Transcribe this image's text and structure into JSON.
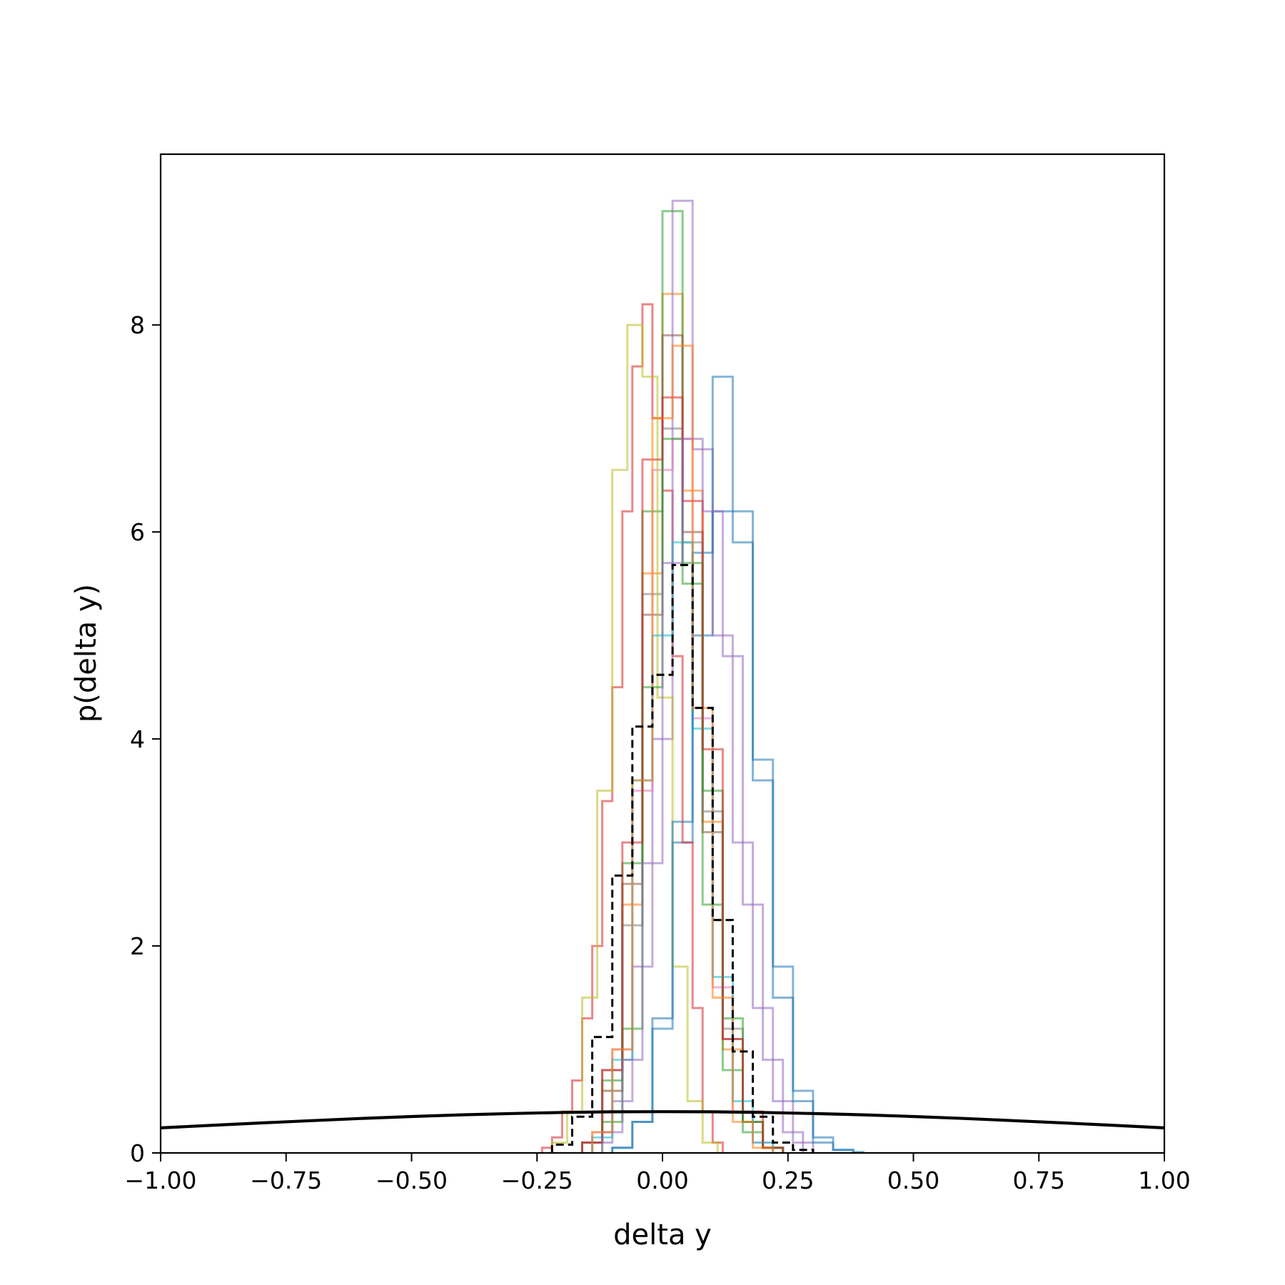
{
  "chart_data": {
    "type": "histogram",
    "xlabel": "delta y",
    "ylabel": "p(delta y)",
    "xlim": [
      -1.0,
      1.0
    ],
    "ylim": [
      0,
      9.65
    ],
    "xticks": [
      -1.0,
      -0.75,
      -0.5,
      -0.25,
      0.0,
      0.25,
      0.5,
      0.75,
      1.0
    ],
    "xtick_labels": [
      "−1.00",
      "−0.75",
      "−0.50",
      "−0.25",
      "0.00",
      "0.25",
      "0.50",
      "0.75",
      "1.00"
    ],
    "yticks": [
      0,
      2,
      4,
      6,
      8
    ],
    "ytick_labels": [
      "0",
      "2",
      "4",
      "6",
      "8"
    ],
    "grid": false,
    "legend": false,
    "style": {
      "histogram_opacity": 0.55,
      "reference_color": "#000000",
      "overall_color": "#000000"
    },
    "series": [
      {
        "color": "#1f77b4",
        "bin_edges": [
          -0.1,
          -0.06,
          -0.02,
          0.02,
          0.06,
          0.1,
          0.14,
          0.18,
          0.22,
          0.26,
          0.3,
          0.34,
          0.38
        ],
        "values": [
          0.05,
          0.3,
          1.2,
          3.0,
          5.0,
          6.2,
          5.9,
          3.8,
          1.8,
          0.6,
          0.15,
          0.03
        ]
      },
      {
        "color": "#ff7f0e",
        "bin_edges": [
          -0.16,
          -0.12,
          -0.08,
          -0.04,
          0.0,
          0.04,
          0.08,
          0.12,
          0.16,
          0.2,
          0.24
        ],
        "values": [
          0.1,
          0.6,
          2.4,
          5.6,
          8.3,
          6.4,
          3.2,
          1.0,
          0.3,
          0.05
        ]
      },
      {
        "color": "#2ca02c",
        "bin_edges": [
          -0.16,
          -0.12,
          -0.08,
          -0.04,
          0.0,
          0.04,
          0.08,
          0.12,
          0.16,
          0.2,
          0.24
        ],
        "values": [
          0.1,
          0.7,
          2.8,
          6.2,
          9.1,
          5.5,
          2.4,
          0.8,
          0.2,
          0.05
        ]
      },
      {
        "color": "#d62728",
        "bin_edges": [
          -0.24,
          -0.22,
          -0.2,
          -0.18,
          -0.16,
          -0.14,
          -0.12,
          -0.1,
          -0.08,
          -0.06,
          -0.04,
          -0.02,
          0.0,
          0.02,
          0.04,
          0.06,
          0.08,
          0.1,
          0.12
        ],
        "values": [
          0.05,
          0.15,
          0.4,
          0.7,
          1.3,
          2.0,
          3.4,
          4.5,
          6.2,
          7.6,
          8.2,
          7.1,
          6.4,
          4.8,
          3.0,
          1.4,
          0.4,
          0.1
        ]
      },
      {
        "color": "#9467bd",
        "bin_edges": [
          -0.14,
          -0.1,
          -0.06,
          -0.02,
          0.02,
          0.06,
          0.1,
          0.14,
          0.18,
          0.22,
          0.26,
          0.3
        ],
        "values": [
          0.1,
          0.5,
          1.8,
          4.0,
          9.2,
          6.8,
          5.0,
          3.0,
          1.4,
          0.5,
          0.1
        ]
      },
      {
        "color": "#8c564b",
        "bin_edges": [
          -0.16,
          -0.12,
          -0.08,
          -0.04,
          0.0,
          0.04,
          0.08,
          0.12,
          0.16,
          0.2,
          0.24
        ],
        "values": [
          0.1,
          0.8,
          2.6,
          5.2,
          7.9,
          6.0,
          3.1,
          1.1,
          0.3,
          0.05
        ]
      },
      {
        "color": "#e377c2",
        "bin_edges": [
          -0.14,
          -0.1,
          -0.06,
          -0.02,
          0.02,
          0.06,
          0.1,
          0.14,
          0.18,
          0.22
        ],
        "values": [
          0.2,
          1.0,
          3.5,
          6.6,
          6.9,
          4.2,
          1.6,
          0.4,
          0.1
        ]
      },
      {
        "color": "#7f7f7f",
        "bin_edges": [
          -0.16,
          -0.12,
          -0.08,
          -0.04,
          0.0,
          0.04,
          0.08,
          0.12,
          0.16,
          0.2,
          0.24
        ],
        "values": [
          0.1,
          0.6,
          2.2,
          5.4,
          7.0,
          5.9,
          3.3,
          1.2,
          0.3,
          0.05
        ]
      },
      {
        "color": "#bcbd22",
        "bin_edges": [
          -0.22,
          -0.19,
          -0.16,
          -0.13,
          -0.1,
          -0.07,
          -0.04,
          -0.01,
          0.02,
          0.05,
          0.08,
          0.11
        ],
        "values": [
          0.1,
          0.4,
          1.5,
          3.5,
          6.6,
          8.0,
          7.5,
          4.4,
          1.8,
          0.5,
          0.1
        ]
      },
      {
        "color": "#17becf",
        "bin_edges": [
          -0.14,
          -0.1,
          -0.06,
          -0.02,
          0.02,
          0.06,
          0.1,
          0.14,
          0.18,
          0.22
        ],
        "values": [
          0.15,
          0.9,
          3.6,
          5.0,
          5.9,
          4.1,
          1.7,
          0.5,
          0.1
        ]
      },
      {
        "color": "#1f77b4",
        "bin_edges": [
          -0.1,
          -0.06,
          -0.02,
          0.02,
          0.06,
          0.1,
          0.14,
          0.18,
          0.22,
          0.26,
          0.3,
          0.34,
          0.38,
          0.4
        ],
        "values": [
          0.05,
          0.3,
          1.3,
          3.2,
          5.8,
          7.5,
          6.2,
          3.6,
          1.5,
          0.5,
          0.1,
          0.03,
          0.01
        ]
      },
      {
        "color": "#2ca02c",
        "bin_edges": [
          -0.12,
          -0.08,
          -0.04,
          0.0,
          0.04,
          0.08,
          0.12,
          0.16,
          0.2,
          0.24
        ],
        "values": [
          0.3,
          1.2,
          4.5,
          6.9,
          5.7,
          3.5,
          1.3,
          0.3,
          0.05
        ]
      },
      {
        "color": "#d62728",
        "bin_edges": [
          -0.16,
          -0.12,
          -0.08,
          -0.04,
          0.0,
          0.04,
          0.08,
          0.12,
          0.16,
          0.2,
          0.24
        ],
        "values": [
          0.1,
          0.8,
          3.0,
          6.7,
          7.3,
          6.3,
          3.9,
          1.1,
          0.4,
          0.05
        ]
      },
      {
        "color": "#9467bd",
        "bin_edges": [
          -0.12,
          -0.08,
          -0.04,
          0.0,
          0.04,
          0.08,
          0.12,
          0.16,
          0.2,
          0.24,
          0.28
        ],
        "values": [
          0.2,
          0.9,
          2.8,
          5.7,
          6.9,
          6.2,
          4.8,
          2.4,
          0.9,
          0.2
        ]
      },
      {
        "color": "#ff7f0e",
        "bin_edges": [
          -0.14,
          -0.1,
          -0.06,
          -0.02,
          0.02,
          0.06,
          0.1,
          0.14,
          0.18,
          0.22
        ],
        "values": [
          0.2,
          1.0,
          3.6,
          7.1,
          7.8,
          4.3,
          1.5,
          0.3,
          0.05
        ]
      }
    ],
    "overall": {
      "style": "dashed",
      "bin_edges": [
        -0.22,
        -0.18,
        -0.14,
        -0.1,
        -0.06,
        -0.02,
        0.02,
        0.06,
        0.1,
        0.14,
        0.18,
        0.22,
        0.26,
        0.3
      ],
      "values": [
        0.08,
        0.35,
        1.12,
        2.68,
        4.12,
        4.62,
        5.68,
        4.3,
        2.25,
        0.98,
        0.35,
        0.1,
        0.03
      ]
    },
    "reference_curve": {
      "type": "normal_pdf",
      "mean": 0.0,
      "std": 1.0,
      "x": [
        -1.0,
        -0.9,
        -0.8,
        -0.7,
        -0.6,
        -0.5,
        -0.4,
        -0.3,
        -0.2,
        -0.1,
        0.0,
        0.1,
        0.2,
        0.3,
        0.4,
        0.5,
        0.6,
        0.7,
        0.8,
        0.9,
        1.0
      ],
      "y": [
        0.242,
        0.266,
        0.29,
        0.312,
        0.333,
        0.352,
        0.368,
        0.381,
        0.391,
        0.397,
        0.399,
        0.397,
        0.391,
        0.381,
        0.368,
        0.352,
        0.333,
        0.312,
        0.29,
        0.266,
        0.242
      ]
    }
  }
}
